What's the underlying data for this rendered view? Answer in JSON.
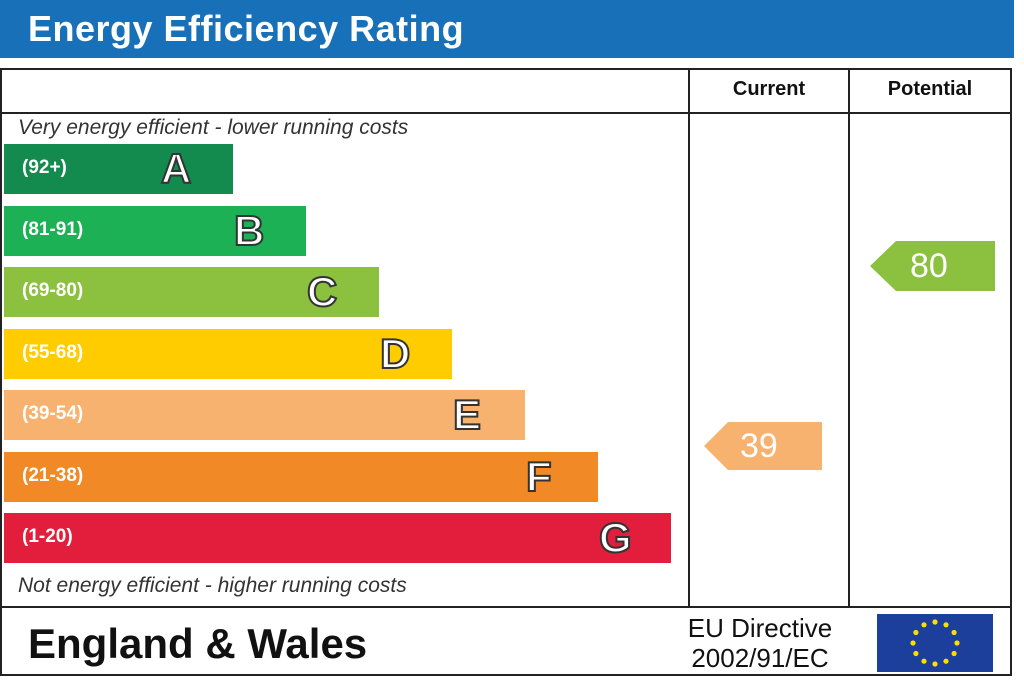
{
  "chart_data": {
    "type": "bar",
    "title": "Energy Efficiency Rating",
    "columns": [
      "Current",
      "Potential"
    ],
    "top_note": "Very energy efficient - lower running costs",
    "bottom_note": "Not energy efficient - higher running costs",
    "bands": [
      {
        "range": "(92+)",
        "letter": "A",
        "color": "#138a4e"
      },
      {
        "range": "(81-91)",
        "letter": "B",
        "color": "#1db155"
      },
      {
        "range": "(69-80)",
        "letter": "C",
        "color": "#8cc13f"
      },
      {
        "range": "(55-68)",
        "letter": "D",
        "color": "#ffcc00"
      },
      {
        "range": "(39-54)",
        "letter": "E",
        "color": "#f7b270"
      },
      {
        "range": "(21-38)",
        "letter": "F",
        "color": "#f18a26"
      },
      {
        "range": "(1-20)",
        "letter": "G",
        "color": "#e31d3c"
      }
    ],
    "current": {
      "value": "39",
      "band": "E",
      "color": "#f7b270"
    },
    "potential": {
      "value": "80",
      "band": "C",
      "color": "#8cc13f"
    },
    "region": "England & Wales",
    "directive_line1": "EU Directive",
    "directive_line2": "2002/91/EC"
  }
}
